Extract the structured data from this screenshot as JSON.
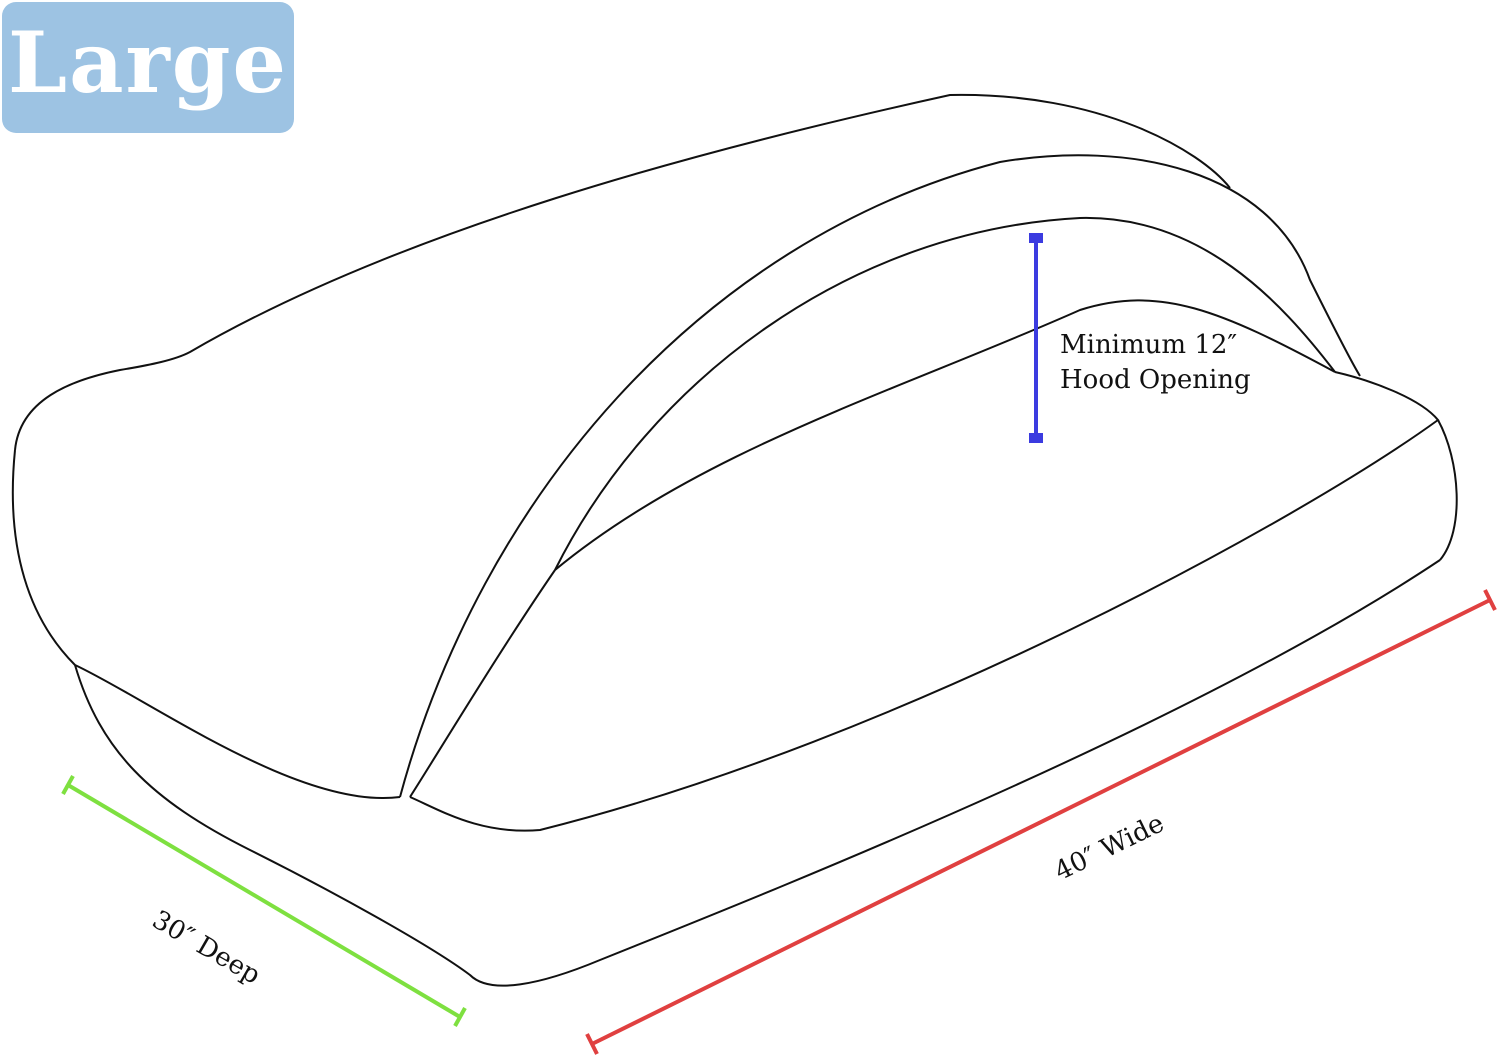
{
  "size_badge": {
    "label": "Large",
    "color": "#9dc3e3"
  },
  "dimensions": {
    "hood": {
      "line1": "Minimum 12″",
      "line2": "Hood Opening",
      "color": "#3b3be0"
    },
    "depth": {
      "label": "30″ Deep",
      "color": "#7ee040"
    },
    "width": {
      "label": "40″ Wide",
      "color": "#e04040"
    }
  }
}
